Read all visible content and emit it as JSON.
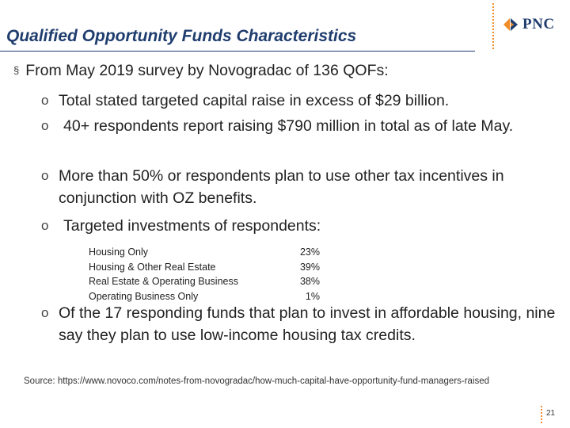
{
  "slide": {
    "title": "Qualified Opportunity Funds Characteristics",
    "logo_text": "PNC",
    "main_bullet": "From May 2019 survey by Novogradac of 136 QOFs:",
    "main_bullet_marker": "§",
    "sub_marker": "o",
    "sub_bullets": [
      "Total stated targeted capital raise in excess of $29 billion.",
      "40+ respondents report raising $790 million in total as of late May.",
      "More than 50% or respondents plan to use other tax incentives in conjunction with OZ benefits.",
      "Targeted investments of respondents:",
      "Of the 17 responding funds that plan to invest in affordable housing, nine say they plan to use low-income housing tax credits."
    ],
    "investments": [
      {
        "category": "Housing Only",
        "percent": "23%"
      },
      {
        "category": "Housing & Other Real Estate",
        "percent": "39%"
      },
      {
        "category": "Real Estate & Operating Business",
        "percent": "38%"
      },
      {
        "category": "Operating Business Only",
        "percent": "1%"
      }
    ],
    "source": "Source: https://www.novoco.com/notes-from-novogradac/how-much-capital-have-opportunity-fund-managers-raised",
    "page_number": "21"
  },
  "colors": {
    "title": "#1f3d6e",
    "accent": "#f28c28",
    "logo_navy": "#1f3d6e"
  }
}
